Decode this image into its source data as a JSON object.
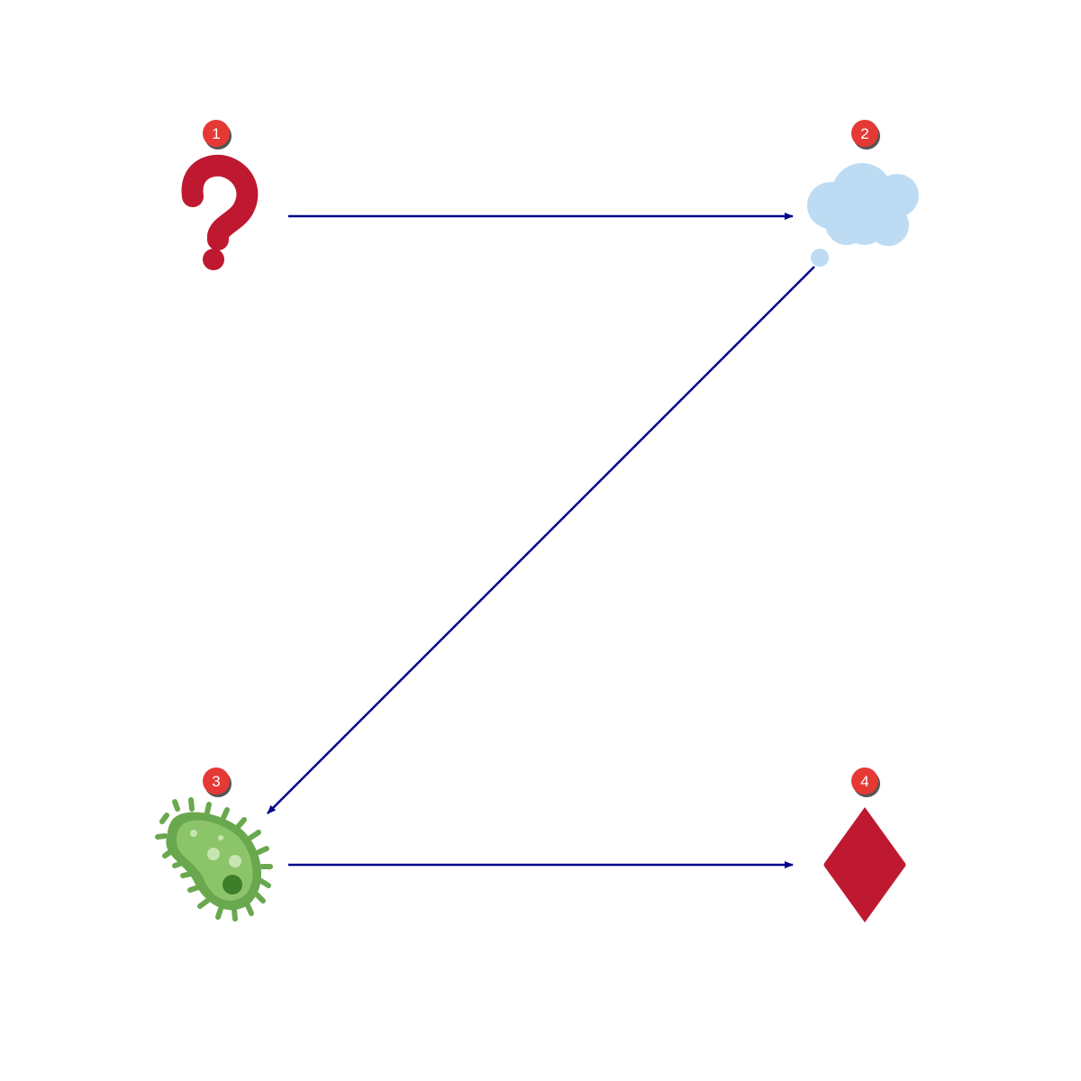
{
  "colors": {
    "edge": "#00008b",
    "badge_fill": "#e53935",
    "badge_shadow": "#555555",
    "question": "#be1931",
    "cloud": "#bddcf4",
    "microbe_outer": "#6aa84f",
    "microbe_inner": "#3e7d2a",
    "diamond": "#be1931"
  },
  "nodes": [
    {
      "id": "n1",
      "badge": "1",
      "icon": "question-mark-icon"
    },
    {
      "id": "n2",
      "badge": "2",
      "icon": "thought-cloud-icon"
    },
    {
      "id": "n3",
      "badge": "3",
      "icon": "microbe-icon"
    },
    {
      "id": "n4",
      "badge": "4",
      "icon": "diamond-suit-icon"
    }
  ],
  "edges": [
    {
      "from": "1",
      "to": "2"
    },
    {
      "from": "2",
      "to": "3"
    },
    {
      "from": "3",
      "to": "4"
    }
  ]
}
